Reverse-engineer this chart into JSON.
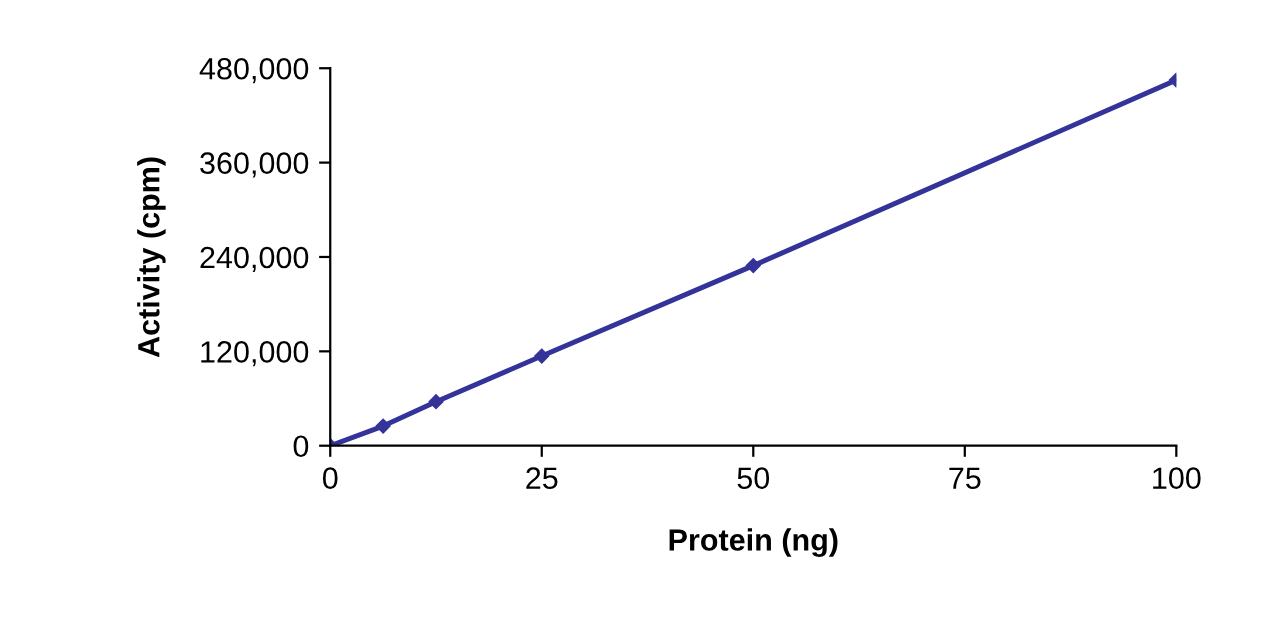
{
  "chart_data": {
    "type": "line",
    "xlabel": "Protein (ng)",
    "ylabel": "Activity (cpm)",
    "x": [
      0,
      6.25,
      12.5,
      25,
      50,
      100
    ],
    "series": [
      {
        "color": "#333399",
        "values": [
          0,
          25000,
          56000,
          114000,
          229000,
          465000
        ]
      }
    ],
    "xlim": [
      0,
      100
    ],
    "xticks": [
      0,
      25,
      50,
      75,
      100
    ],
    "ylim": [
      0,
      480000
    ],
    "yticks": [
      {
        "value": 0,
        "label": "0"
      },
      {
        "value": 120000,
        "label": "120,000"
      },
      {
        "value": 240000,
        "label": "240,000"
      },
      {
        "value": 360000,
        "label": "360,000"
      },
      {
        "value": 480000,
        "label": "480,000"
      }
    ],
    "grid": false,
    "legend": false,
    "marker": "diamond",
    "line_style": "solid"
  }
}
